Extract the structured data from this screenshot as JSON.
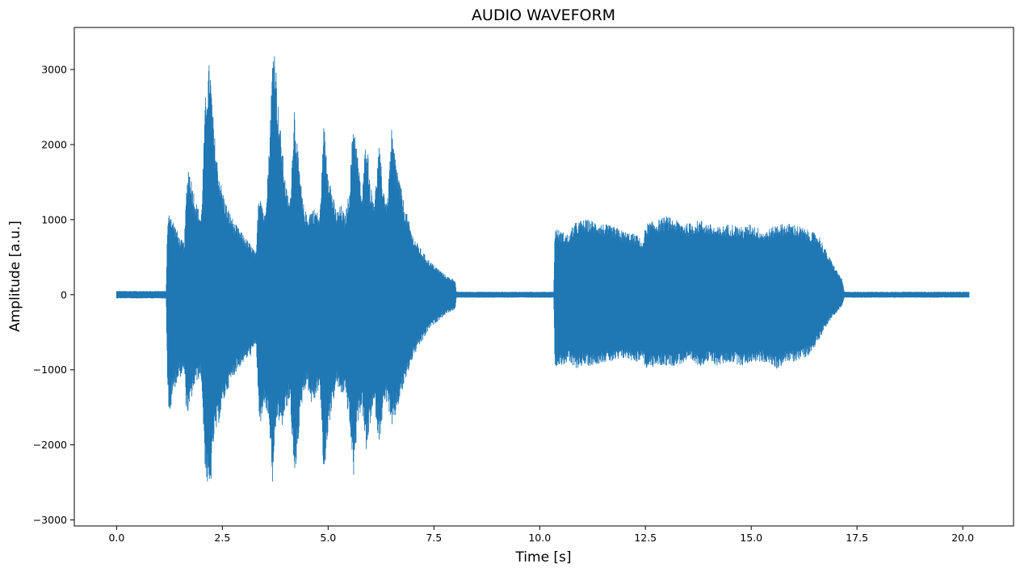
{
  "chart_data": {
    "type": "line",
    "title": "AUDIO WAVEFORM",
    "xlabel": "Time [s]",
    "ylabel": "Amplitude [a.u.]",
    "xlim": [
      -1.0,
      21.2
    ],
    "ylim": [
      -3080,
      3560
    ],
    "x_ticks": [
      0.0,
      2.5,
      5.0,
      7.5,
      10.0,
      12.5,
      15.0,
      17.5,
      20.0
    ],
    "x_tick_labels": [
      "0.0",
      "2.5",
      "5.0",
      "7.5",
      "10.0",
      "12.5",
      "15.0",
      "17.5",
      "20.0"
    ],
    "y_ticks": [
      -3000,
      -2000,
      -1000,
      0,
      1000,
      2000,
      3000
    ],
    "y_tick_labels": [
      "−3000",
      "−2000",
      "−1000",
      "0",
      "1000",
      "2000",
      "3000"
    ],
    "grid": false,
    "line_color": "#1f77b4",
    "series": [
      {
        "name": "",
        "envelope_upper": {
          "x": [
            0.0,
            1.17,
            1.2,
            1.25,
            1.3,
            1.4,
            1.5,
            1.6,
            1.65,
            1.7,
            1.8,
            1.9,
            2.0,
            2.1,
            2.2,
            2.3,
            2.4,
            2.5,
            2.6,
            2.8,
            3.0,
            3.2,
            3.3,
            3.35,
            3.4,
            3.5,
            3.6,
            3.7,
            3.75,
            3.8,
            3.9,
            4.0,
            4.1,
            4.2,
            4.3,
            4.4,
            4.5,
            4.6,
            4.7,
            4.8,
            4.9,
            5.0,
            5.1,
            5.2,
            5.3,
            5.4,
            5.5,
            5.6,
            5.7,
            5.8,
            5.9,
            6.0,
            6.1,
            6.2,
            6.3,
            6.4,
            6.5,
            6.6,
            6.8,
            7.0,
            7.2,
            7.4,
            7.6,
            7.8,
            8.0,
            8.03,
            9.0,
            10.0,
            10.33,
            10.36,
            10.5,
            10.7,
            10.8,
            11.0,
            11.2,
            11.5,
            11.8,
            12.0,
            12.3,
            12.45,
            12.5,
            12.8,
            13.0,
            13.2,
            13.5,
            13.8,
            14.0,
            14.2,
            14.5,
            14.8,
            15.0,
            15.3,
            15.5,
            15.6,
            15.8,
            16.0,
            16.2,
            16.4,
            16.6,
            16.8,
            17.0,
            17.15,
            17.2,
            18.0,
            19.0,
            20.0,
            20.15
          ],
          "y": [
            50,
            50,
            900,
            1150,
            1050,
            900,
            750,
            700,
            1400,
            1750,
            1450,
            1200,
            1050,
            2650,
            3150,
            2200,
            1700,
            1400,
            1200,
            950,
            800,
            650,
            550,
            1300,
            1400,
            1050,
            1900,
            3400,
            3300,
            2650,
            2050,
            1450,
            1250,
            2550,
            1800,
            1250,
            1050,
            1150,
            1150,
            1050,
            2300,
            1700,
            1350,
            1100,
            1200,
            1050,
            1400,
            2400,
            1850,
            1300,
            2200,
            1450,
            1300,
            2000,
            1450,
            1250,
            2200,
            1800,
            1200,
            800,
            600,
            450,
            350,
            250,
            200,
            40,
            40,
            40,
            40,
            900,
            850,
            800,
            950,
            1000,
            1000,
            950,
            900,
            850,
            800,
            700,
            950,
            1000,
            1050,
            1000,
            950,
            1000,
            950,
            900,
            950,
            900,
            950,
            850,
            900,
            950,
            950,
            950,
            900,
            850,
            800,
            550,
            350,
            200,
            40,
            40,
            40,
            40,
            40
          ]
        },
        "envelope_lower": {
          "x": [
            0.0,
            1.17,
            1.2,
            1.25,
            1.3,
            1.4,
            1.5,
            1.6,
            1.65,
            1.7,
            1.8,
            1.9,
            2.0,
            2.1,
            2.2,
            2.3,
            2.4,
            2.5,
            2.6,
            2.8,
            3.0,
            3.2,
            3.3,
            3.35,
            3.4,
            3.5,
            3.6,
            3.7,
            3.75,
            3.8,
            3.9,
            4.0,
            4.1,
            4.2,
            4.3,
            4.4,
            4.5,
            4.6,
            4.7,
            4.8,
            4.9,
            5.0,
            5.1,
            5.2,
            5.3,
            5.4,
            5.5,
            5.6,
            5.7,
            5.8,
            5.9,
            6.0,
            6.1,
            6.2,
            6.3,
            6.4,
            6.5,
            6.6,
            6.8,
            7.0,
            7.2,
            7.4,
            7.6,
            7.8,
            8.0,
            8.03,
            9.0,
            10.0,
            10.33,
            10.36,
            10.5,
            10.7,
            10.8,
            11.0,
            11.2,
            11.5,
            11.8,
            12.0,
            12.3,
            12.45,
            12.5,
            12.8,
            13.0,
            13.2,
            13.5,
            13.8,
            14.0,
            14.2,
            14.5,
            14.8,
            15.0,
            15.3,
            15.5,
            15.6,
            15.8,
            16.0,
            16.2,
            16.4,
            16.6,
            16.8,
            17.0,
            17.15,
            17.2,
            18.0,
            19.0,
            20.0,
            20.15
          ],
          "y": [
            -50,
            -50,
            -1100,
            -1800,
            -1400,
            -1200,
            -1100,
            -1050,
            -1550,
            -1600,
            -1300,
            -1150,
            -1100,
            -2400,
            -2750,
            -1950,
            -1750,
            -1500,
            -1300,
            -1050,
            -900,
            -800,
            -650,
            -1500,
            -1800,
            -1450,
            -1700,
            -2700,
            -1900,
            -1650,
            -1800,
            -1550,
            -1400,
            -2550,
            -1900,
            -1350,
            -1200,
            -1450,
            -1400,
            -1200,
            -2500,
            -1800,
            -1500,
            -1200,
            -1350,
            -1300,
            -1700,
            -2450,
            -1700,
            -1500,
            -2150,
            -1700,
            -1500,
            -2000,
            -1550,
            -1400,
            -1850,
            -1600,
            -1200,
            -850,
            -650,
            -450,
            -350,
            -250,
            -200,
            -40,
            -40,
            -40,
            -40,
            -950,
            -950,
            -900,
            -1000,
            -950,
            -950,
            -900,
            -900,
            -850,
            -900,
            -850,
            -1000,
            -950,
            -950,
            -950,
            -900,
            -950,
            -900,
            -950,
            -900,
            -950,
            -900,
            -900,
            -950,
            -1000,
            -900,
            -900,
            -850,
            -800,
            -600,
            -400,
            -250,
            -150,
            -40,
            -40,
            -40,
            -40,
            -40
          ]
        }
      }
    ]
  }
}
